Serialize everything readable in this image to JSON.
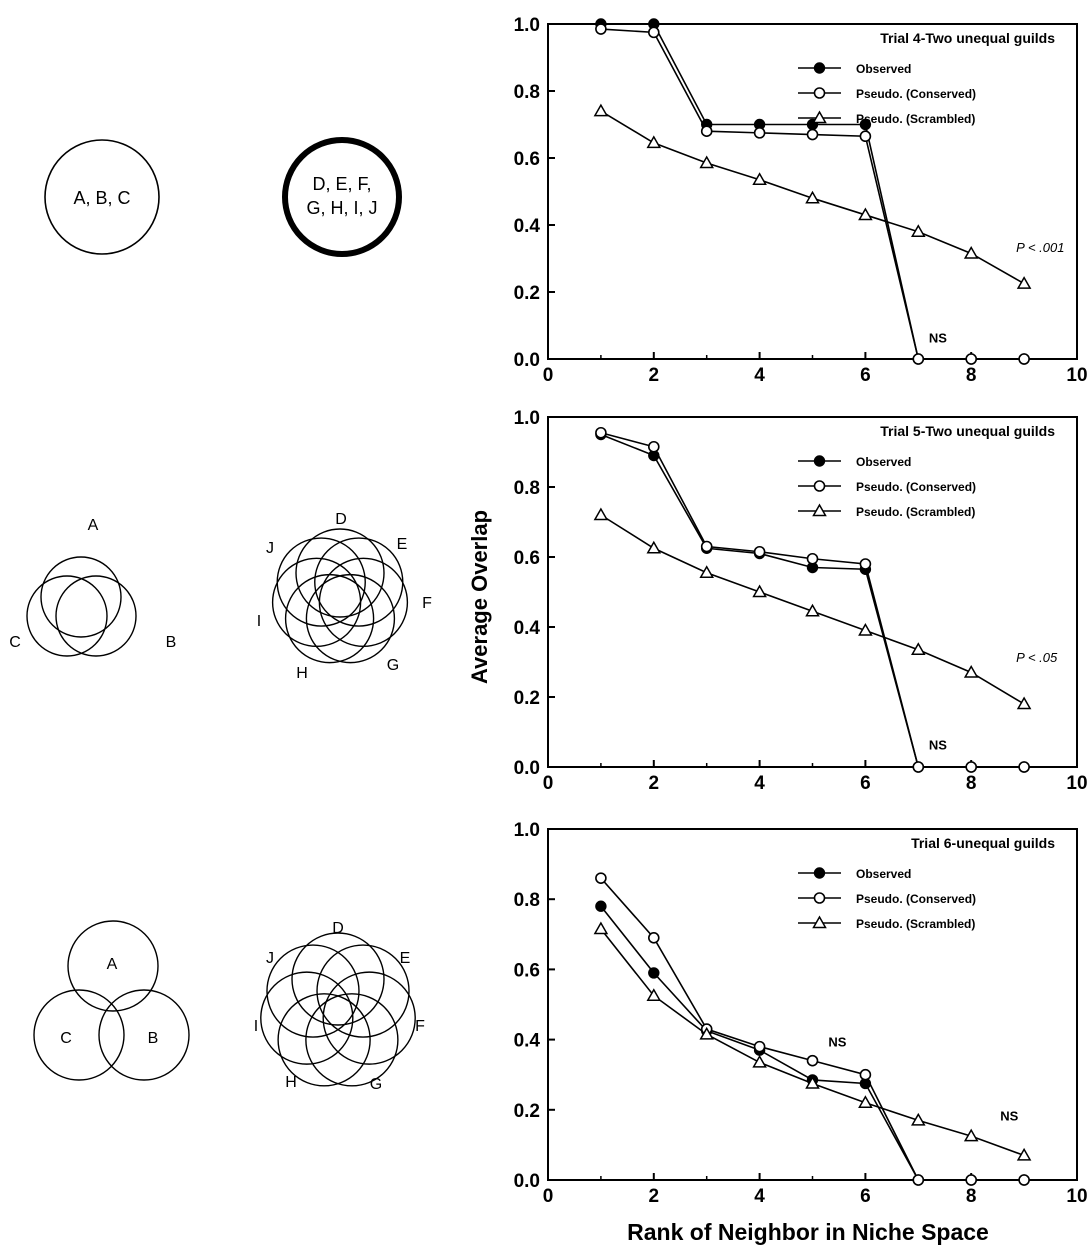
{
  "figure": {
    "ylabel": "Average Overlap",
    "xlabel": "Rank of Neighbor in Niche Space"
  },
  "diagrams": [
    {
      "guild1_label": "A, B, C",
      "guild2_label_line1": "D, E, F,",
      "guild2_label_line2": "G, H, I, J"
    },
    {
      "guild1_letters": [
        "A",
        "B",
        "C"
      ],
      "guild2_letters": [
        "D",
        "E",
        "F",
        "G",
        "H",
        "I",
        "J"
      ]
    },
    {
      "guild1_letters": [
        "A",
        "B",
        "C"
      ],
      "guild2_letters": [
        "D",
        "E",
        "F",
        "G",
        "H",
        "I",
        "J"
      ]
    }
  ],
  "chart_data": [
    {
      "type": "line",
      "title": "Trial 4-Two unequal guilds",
      "xlim": [
        0,
        10
      ],
      "ylim": [
        0,
        1.0
      ],
      "xticks": [
        "0",
        "2",
        "4",
        "6",
        "8",
        "10"
      ],
      "yticks": [
        "0.0",
        "0.2",
        "0.4",
        "0.6",
        "0.8",
        "1.0"
      ],
      "x": [
        1,
        2,
        3,
        4,
        5,
        6,
        7,
        8,
        9
      ],
      "series": [
        {
          "name": "Observed",
          "marker": "filled-circle",
          "values": [
            1.0,
            1.0,
            0.7,
            0.7,
            0.7,
            0.7,
            0.0,
            0.0,
            0.0
          ]
        },
        {
          "name": "Pseudo. (Conserved)",
          "marker": "open-circle",
          "values": [
            0.985,
            0.975,
            0.68,
            0.675,
            0.67,
            0.665,
            0.0,
            0.0,
            0.0
          ]
        },
        {
          "name": "Pseudo. (Scrambled)",
          "marker": "open-triangle",
          "values": [
            0.74,
            0.645,
            0.585,
            0.535,
            0.48,
            0.43,
            0.38,
            0.315,
            0.225
          ]
        }
      ],
      "annotations": [
        {
          "text": "NS",
          "x": 7.2,
          "y": 0.05
        },
        {
          "text": "P < .001",
          "x": 8.85,
          "y": 0.32
        }
      ],
      "legend": "top-right"
    },
    {
      "type": "line",
      "title": "Trial 5-Two unequal guilds",
      "xlim": [
        0,
        10
      ],
      "ylim": [
        0,
        1.0
      ],
      "xticks": [
        "0",
        "2",
        "4",
        "6",
        "8",
        "10"
      ],
      "yticks": [
        "0.0",
        "0.2",
        "0.4",
        "0.6",
        "0.8",
        "1.0"
      ],
      "x": [
        1,
        2,
        3,
        4,
        5,
        6,
        7,
        8,
        9
      ],
      "series": [
        {
          "name": "Observed",
          "marker": "filled-circle",
          "values": [
            0.95,
            0.89,
            0.625,
            0.61,
            0.57,
            0.565,
            0.0,
            0.0,
            0.0
          ]
        },
        {
          "name": "Pseudo. (Conserved)",
          "marker": "open-circle",
          "values": [
            0.955,
            0.915,
            0.63,
            0.615,
            0.595,
            0.58,
            0.0,
            0.0,
            0.0
          ]
        },
        {
          "name": "Pseudo. (Scrambled)",
          "marker": "open-triangle",
          "values": [
            0.72,
            0.625,
            0.555,
            0.5,
            0.445,
            0.39,
            0.335,
            0.27,
            0.18
          ]
        }
      ],
      "annotations": [
        {
          "text": "NS",
          "x": 7.2,
          "y": 0.05
        },
        {
          "text": "P < .05",
          "x": 8.85,
          "y": 0.3
        }
      ],
      "legend": "top-right"
    },
    {
      "type": "line",
      "title": "Trial 6-unequal guilds",
      "xlim": [
        0,
        10
      ],
      "ylim": [
        0,
        1.0
      ],
      "xticks": [
        "0",
        "2",
        "4",
        "6",
        "8",
        "10"
      ],
      "yticks": [
        "0.0",
        "0.2",
        "0.4",
        "0.6",
        "0.8",
        "1.0"
      ],
      "x": [
        1,
        2,
        3,
        4,
        5,
        6,
        7,
        8,
        9
      ],
      "series": [
        {
          "name": "Observed",
          "marker": "filled-circle",
          "values": [
            0.78,
            0.59,
            0.425,
            0.37,
            0.285,
            0.275,
            0.0,
            0.0,
            0.0
          ]
        },
        {
          "name": "Pseudo. (Conserved)",
          "marker": "open-circle",
          "values": [
            0.86,
            0.69,
            0.43,
            0.38,
            0.34,
            0.3,
            0.0,
            0.0,
            0.0
          ]
        },
        {
          "name": "Pseudo. (Scrambled)",
          "marker": "open-triangle",
          "values": [
            0.715,
            0.525,
            0.415,
            0.335,
            0.275,
            0.22,
            0.17,
            0.125,
            0.07
          ]
        }
      ],
      "annotations": [
        {
          "text": "NS",
          "x": 5.3,
          "y": 0.38
        },
        {
          "text": "NS",
          "x": 8.55,
          "y": 0.17
        }
      ],
      "legend": "top-right"
    }
  ]
}
